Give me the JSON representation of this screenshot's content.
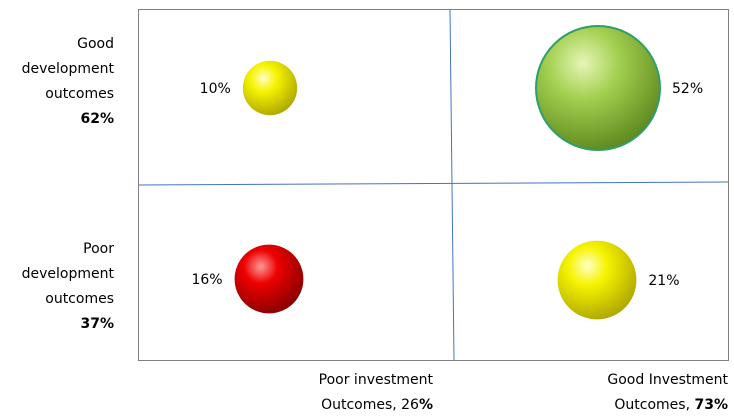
{
  "chart_data": {
    "type": "bubble-quadrant",
    "title": "",
    "rows": [
      {
        "label_lines": [
          "Good",
          "development",
          "outcomes"
        ],
        "pct": "62%"
      },
      {
        "label_lines": [
          "Poor",
          "development",
          "outcomes"
        ],
        "pct": "37%"
      }
    ],
    "columns": [
      {
        "label_line1": "Poor investment",
        "label_line2": "Outcomes, 26",
        "pct_symbol": "%"
      },
      {
        "label_line1": "Good Investment",
        "label_line2": "Outcomes, ",
        "pct_bold": "73%"
      }
    ],
    "bubbles": [
      {
        "row": 0,
        "col": 0,
        "value": 10,
        "label": "10%",
        "label_side": "left",
        "color": "#f2f200"
      },
      {
        "row": 0,
        "col": 1,
        "value": 52,
        "label": "52%",
        "label_side": "right",
        "color": "#8dc63f"
      },
      {
        "row": 1,
        "col": 0,
        "value": 16,
        "label": "16%",
        "label_side": "left",
        "color": "#e00000"
      },
      {
        "row": 1,
        "col": 1,
        "value": 21,
        "label": "21%",
        "label_side": "right",
        "color": "#f2f200"
      }
    ],
    "colors": {
      "divider": "#4472c4",
      "frame": "#808080"
    }
  }
}
